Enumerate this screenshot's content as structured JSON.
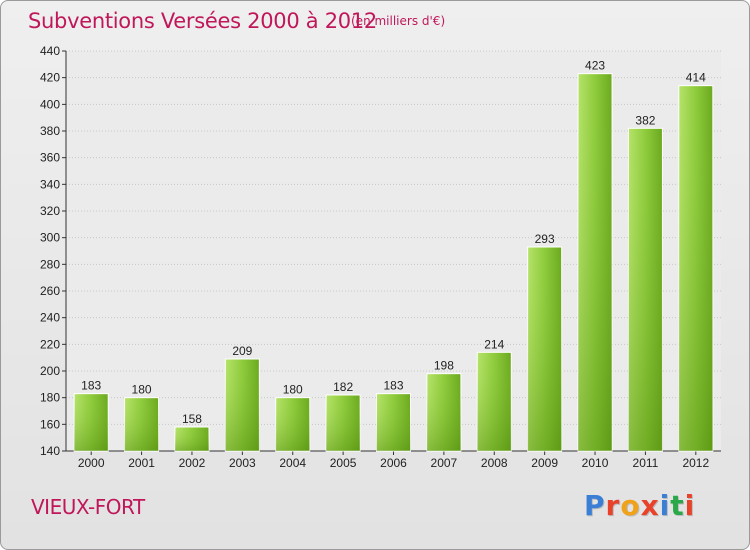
{
  "title": "Subventions Versées 2000 à 2012",
  "subtitle": "(en milliers d'€)",
  "place": "VIEUX-FORT",
  "brand": {
    "text": "Proxiti",
    "colors": [
      "#3a7fd5",
      "#e8422a",
      "#f0a21a",
      "#e8422a",
      "#3a7fd5",
      "#2aa84a",
      "#e8422a"
    ]
  },
  "colors": {
    "accent": "#c0175a",
    "bar_light": "#a2d852",
    "bar_dark": "#5e9c10",
    "grid": "#c8c8c8"
  },
  "chart_data": {
    "type": "bar",
    "title": "Subventions Versées 2000 à 2012",
    "subtitle": "(en milliers d'€)",
    "categories": [
      "2000",
      "2001",
      "2002",
      "2003",
      "2004",
      "2005",
      "2006",
      "2007",
      "2008",
      "2009",
      "2010",
      "2011",
      "2012"
    ],
    "values": [
      183,
      180,
      158,
      209,
      180,
      182,
      183,
      198,
      214,
      293,
      423,
      382,
      414
    ],
    "ylim": [
      140,
      440
    ],
    "yticks": [
      140,
      160,
      180,
      200,
      220,
      240,
      260,
      280,
      300,
      320,
      340,
      360,
      380,
      400,
      420,
      440
    ],
    "grid": true,
    "xlabel": "",
    "ylabel": ""
  }
}
